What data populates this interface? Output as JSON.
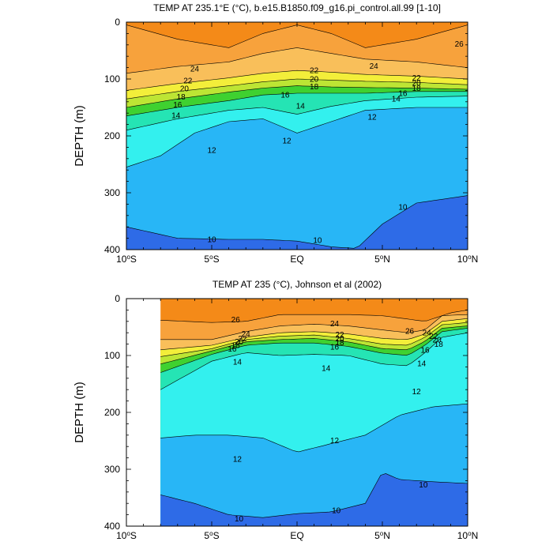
{
  "chart_data": [
    {
      "type": "contour",
      "title": "TEMP AT 235.1°E (°C), b.e15.B1850.f09_g16.pi_control.all.99 [1-10]",
      "ylabel": "DEPTH (m)",
      "xlim": [
        -10,
        10
      ],
      "ylim": [
        400,
        0
      ],
      "x_ticks": [
        "10°S",
        "5°S",
        "EQ",
        "5°N",
        "10°N"
      ],
      "y_ticks": [
        "0",
        "100",
        "200",
        "300",
        "400"
      ],
      "isotherms": [
        {
          "level": 26,
          "x": [
            -10,
            -7,
            -4,
            -2,
            0,
            2,
            4,
            7,
            10
          ],
          "depth": [
            5,
            30,
            45,
            20,
            5,
            20,
            45,
            30,
            5
          ]
        },
        {
          "level": 24,
          "x": [
            -10,
            -7,
            -4,
            -2,
            0,
            2,
            4,
            7,
            10
          ],
          "depth": [
            90,
            78,
            70,
            55,
            45,
            55,
            65,
            70,
            80
          ]
        },
        {
          "level": 22,
          "x": [
            -10,
            -7,
            -4,
            -2,
            0,
            2,
            4,
            7,
            10
          ],
          "depth": [
            120,
            108,
            98,
            90,
            85,
            88,
            92,
            95,
            100
          ]
        },
        {
          "level": 20,
          "x": [
            -10,
            -7,
            -4,
            -2,
            0,
            2,
            4,
            7,
            10
          ],
          "depth": [
            135,
            122,
            112,
            105,
            100,
            102,
            104,
            106,
            110
          ]
        },
        {
          "level": 18,
          "x": [
            -10,
            -7,
            -4,
            -2,
            0,
            2,
            4,
            7,
            10
          ],
          "depth": [
            150,
            135,
            123,
            116,
            112,
            114,
            115,
            116,
            118
          ]
        },
        {
          "level": 16,
          "x": [
            -10,
            -7,
            -4,
            -2,
            0,
            2,
            4,
            7,
            10
          ],
          "depth": [
            165,
            150,
            138,
            128,
            125,
            125,
            125,
            122,
            122
          ]
        },
        {
          "level": 14,
          "x": [
            -10,
            -7,
            -4,
            -2,
            0,
            2,
            4,
            7,
            10
          ],
          "depth": [
            190,
            170,
            155,
            150,
            162,
            148,
            138,
            132,
            130
          ]
        },
        {
          "level": 12,
          "x": [
            -10,
            -8,
            -6,
            -4,
            -2,
            0,
            2,
            4,
            7,
            10
          ],
          "depth": [
            255,
            235,
            195,
            175,
            170,
            195,
            175,
            155,
            150,
            150
          ]
        },
        {
          "level": 10,
          "x": [
            -10,
            -7,
            -4,
            -2,
            0,
            2,
            3.5,
            5,
            7,
            10
          ],
          "depth": [
            360,
            380,
            382,
            382,
            385,
            395,
            398,
            355,
            318,
            305
          ]
        }
      ],
      "contour_labels": [
        {
          "text": "26",
          "x": 9.5,
          "y": 38
        },
        {
          "text": "24",
          "x": -6,
          "y": 82
        },
        {
          "text": "24",
          "x": 4.5,
          "y": 77
        },
        {
          "text": "22",
          "x": -6.4,
          "y": 103
        },
        {
          "text": "22",
          "x": 1,
          "y": 85
        },
        {
          "text": "22",
          "x": 7,
          "y": 98
        },
        {
          "text": "20",
          "x": -6.6,
          "y": 117
        },
        {
          "text": "20",
          "x": 1,
          "y": 100
        },
        {
          "text": "20",
          "x": 7,
          "y": 107
        },
        {
          "text": "18",
          "x": -6.8,
          "y": 131
        },
        {
          "text": "18",
          "x": 1,
          "y": 113
        },
        {
          "text": "18",
          "x": 7,
          "y": 116
        },
        {
          "text": "16",
          "x": -7,
          "y": 145
        },
        {
          "text": "16",
          "x": -0.7,
          "y": 128
        },
        {
          "text": "16",
          "x": 6.2,
          "y": 125
        },
        {
          "text": "14",
          "x": -7.1,
          "y": 164
        },
        {
          "text": "14",
          "x": 0.2,
          "y": 147
        },
        {
          "text": "14",
          "x": 5.8,
          "y": 135
        },
        {
          "text": "12",
          "x": -5,
          "y": 225
        },
        {
          "text": "12",
          "x": -0.6,
          "y": 208
        },
        {
          "text": "12",
          "x": 4.4,
          "y": 167
        },
        {
          "text": "10",
          "x": -5,
          "y": 382
        },
        {
          "text": "10",
          "x": 1.2,
          "y": 383
        },
        {
          "text": "10",
          "x": 6.2,
          "y": 325
        }
      ]
    },
    {
      "type": "contour",
      "title": "TEMP AT 235 (°C), Johnson et al (2002)",
      "ylabel": "DEPTH (m)",
      "xlim": [
        -10,
        10
      ],
      "ylim": [
        400,
        0
      ],
      "data_x_range": [
        -8,
        10
      ],
      "x_ticks": [
        "10°S",
        "5°S",
        "EQ",
        "5°N",
        "10°N"
      ],
      "y_ticks": [
        "0",
        "100",
        "200",
        "300",
        "400"
      ],
      "isotherms": [
        {
          "level": 26,
          "x": [
            -8,
            -5,
            -3,
            -1,
            1,
            3,
            5,
            6.5,
            7.5,
            9,
            10
          ],
          "depth": [
            38,
            42,
            40,
            28,
            28,
            28,
            30,
            36,
            40,
            25,
            20
          ]
        },
        {
          "level": 24,
          "x": [
            -8,
            -5,
            -3,
            -1,
            1,
            3,
            5,
            6.5,
            7.5,
            8.5,
            10
          ],
          "depth": [
            72,
            72,
            58,
            48,
            45,
            48,
            55,
            60,
            55,
            30,
            28
          ]
        },
        {
          "level": 22,
          "x": [
            -8,
            -5,
            -3,
            -1,
            1,
            3,
            5,
            6.5,
            7.5,
            8.5,
            10
          ],
          "depth": [
            90,
            82,
            68,
            60,
            58,
            62,
            70,
            72,
            62,
            40,
            35
          ]
        },
        {
          "level": 20,
          "x": [
            -8,
            -5,
            -3,
            -1,
            1,
            3,
            5,
            6.5,
            7.5,
            8.5,
            10
          ],
          "depth": [
            102,
            88,
            72,
            66,
            64,
            70,
            80,
            82,
            68,
            46,
            42
          ]
        },
        {
          "level": 18,
          "x": [
            -8,
            -5,
            -3,
            -1,
            1,
            3,
            5,
            6.5,
            7.5,
            8.5,
            10
          ],
          "depth": [
            115,
            92,
            76,
            72,
            70,
            76,
            88,
            90,
            75,
            52,
            48
          ]
        },
        {
          "level": 16,
          "x": [
            -8,
            -5,
            -3,
            -1,
            1,
            3,
            5,
            6.5,
            7.5,
            8.5,
            10
          ],
          "depth": [
            130,
            98,
            82,
            78,
            78,
            84,
            96,
            100,
            82,
            58,
            52
          ]
        },
        {
          "level": 14,
          "x": [
            -8,
            -5,
            -3,
            -1,
            1,
            3,
            5,
            6.5,
            7.5,
            8.5,
            10
          ],
          "depth": [
            160,
            110,
            95,
            100,
            98,
            100,
            115,
            118,
            95,
            68,
            60
          ]
        },
        {
          "level": 12,
          "x": [
            -8,
            -6,
            -4,
            -2,
            0,
            2,
            4,
            6,
            8,
            10
          ],
          "depth": [
            245,
            240,
            240,
            245,
            270,
            255,
            240,
            205,
            190,
            185
          ]
        },
        {
          "level": 10,
          "x": [
            -8,
            -6,
            -4,
            -2,
            0,
            2,
            4,
            5,
            6,
            8,
            10
          ],
          "depth": [
            345,
            360,
            380,
            385,
            378,
            375,
            360,
            305,
            318,
            322,
            325
          ]
        }
      ],
      "contour_labels": [
        {
          "text": "26",
          "x": -3.6,
          "y": 37
        },
        {
          "text": "26",
          "x": 6.6,
          "y": 57
        },
        {
          "text": "24",
          "x": -3,
          "y": 62
        },
        {
          "text": "24",
          "x": 2.2,
          "y": 44
        },
        {
          "text": "24",
          "x": 7.6,
          "y": 60
        },
        {
          "text": "22",
          "x": -3.2,
          "y": 70
        },
        {
          "text": "22",
          "x": 2.5,
          "y": 63
        },
        {
          "text": "22",
          "x": 8,
          "y": 66
        },
        {
          "text": "20",
          "x": -3.4,
          "y": 76
        },
        {
          "text": "20",
          "x": 2.5,
          "y": 70
        },
        {
          "text": "20",
          "x": 8.2,
          "y": 72
        },
        {
          "text": "18",
          "x": -3.6,
          "y": 82
        },
        {
          "text": "18",
          "x": 2.5,
          "y": 77
        },
        {
          "text": "18",
          "x": 8.3,
          "y": 80
        },
        {
          "text": "16",
          "x": -3.8,
          "y": 88
        },
        {
          "text": "16",
          "x": 2.2,
          "y": 85
        },
        {
          "text": "16",
          "x": 7.5,
          "y": 90
        },
        {
          "text": "14",
          "x": -3.5,
          "y": 111
        },
        {
          "text": "14",
          "x": 1.7,
          "y": 122
        },
        {
          "text": "14",
          "x": 7.3,
          "y": 114
        },
        {
          "text": "12",
          "x": -3.5,
          "y": 282
        },
        {
          "text": "12",
          "x": 2.2,
          "y": 249
        },
        {
          "text": "12",
          "x": 7,
          "y": 163
        },
        {
          "text": "10",
          "x": -3.4,
          "y": 387
        },
        {
          "text": "10",
          "x": 2.3,
          "y": 372
        },
        {
          "text": "10",
          "x": 7.4,
          "y": 327
        }
      ]
    }
  ]
}
